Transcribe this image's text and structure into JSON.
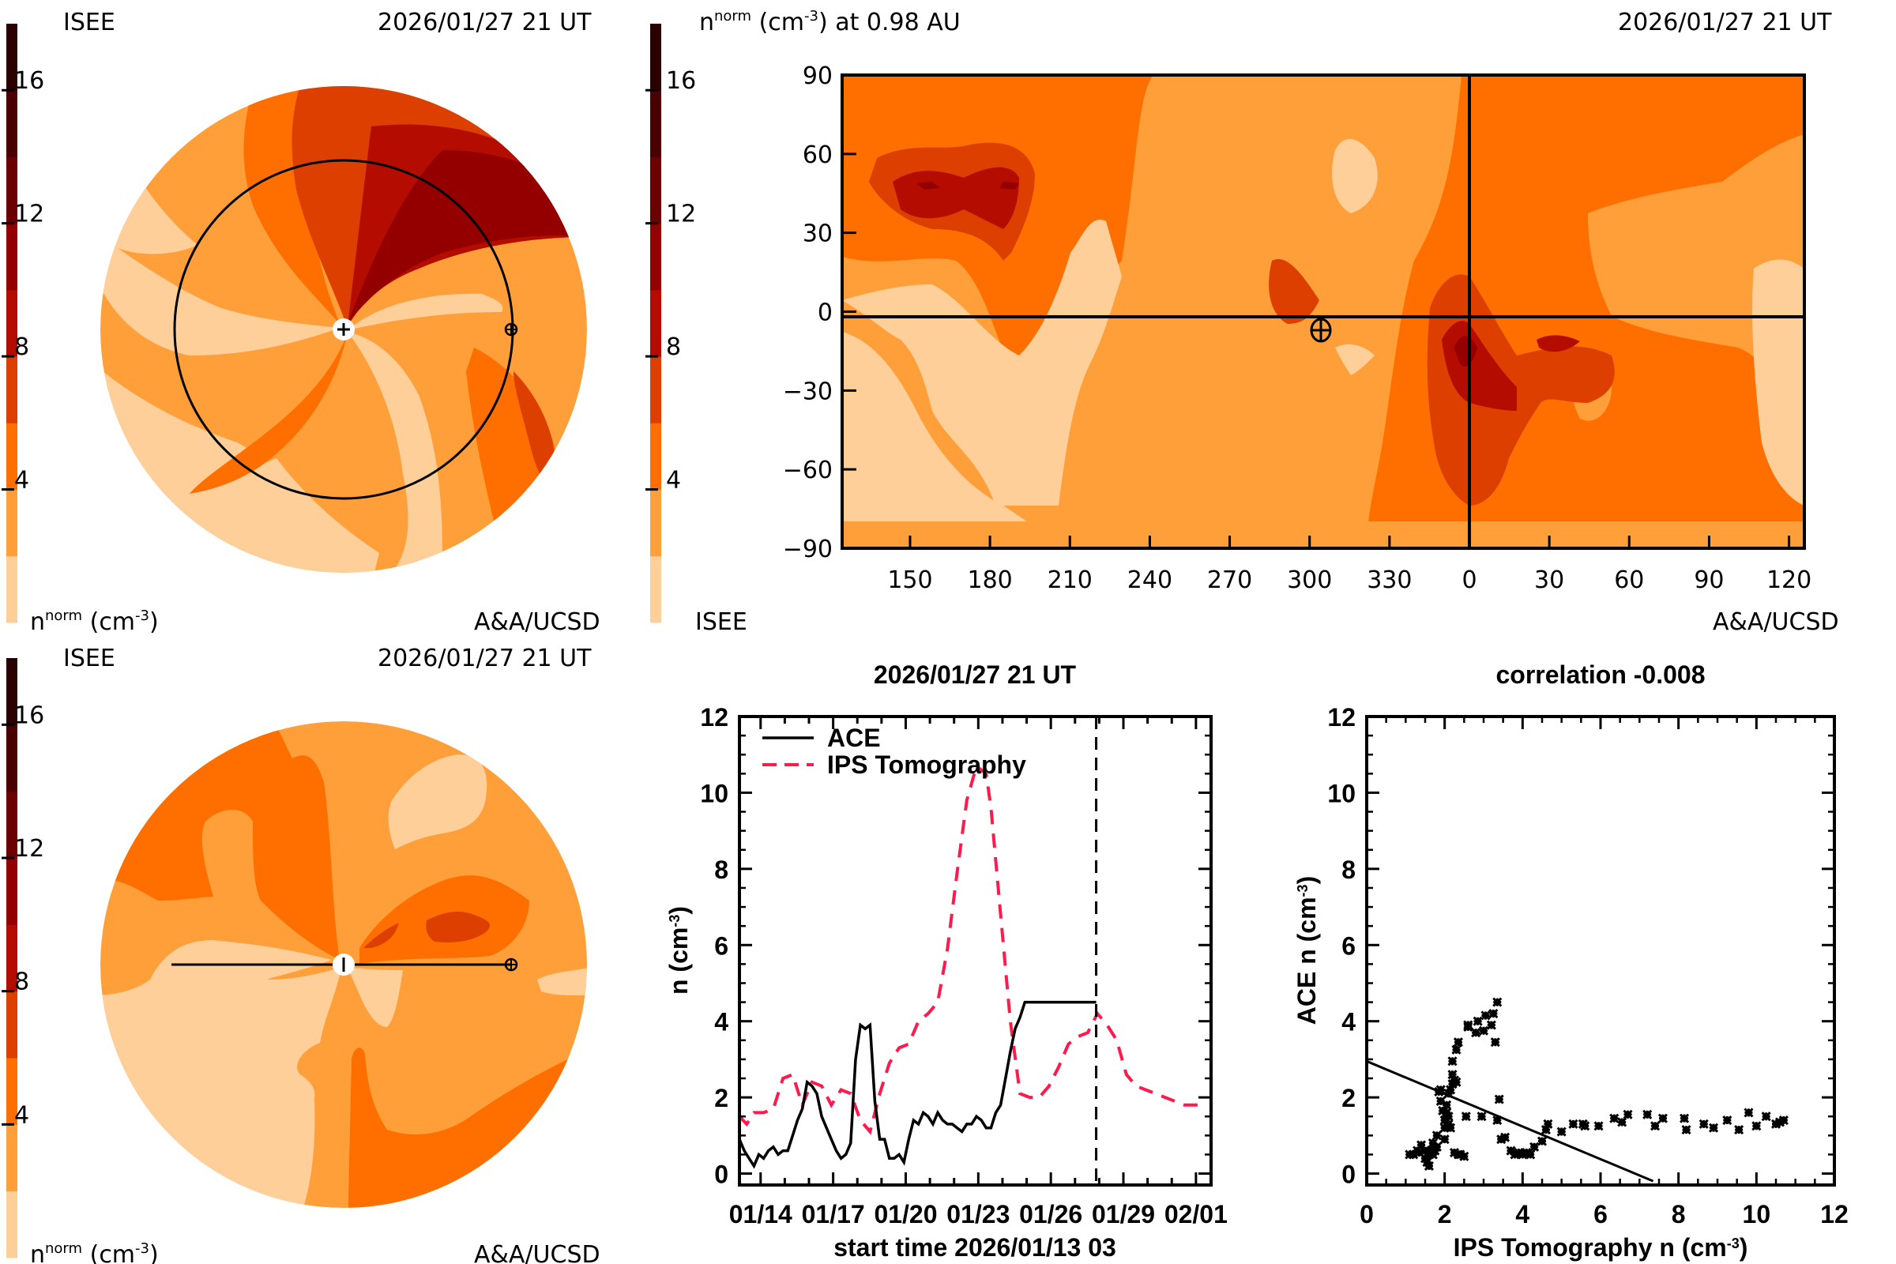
{
  "colors": {
    "levels": [
      "#ffcf9a",
      "#ff9f3a",
      "#ff6f00",
      "#dc3f00",
      "#b50c00",
      "#940000",
      "#6c0000",
      "#4a0000",
      "#2a0000"
    ],
    "ips_line": "#ff1a4d",
    "ace_line": "#000000"
  },
  "panels": {
    "ecliptic": {
      "source_label": "ISEE",
      "timestamp": "2026/01/27 21 UT",
      "unit_label_base": "n",
      "unit_label_sup": "norm",
      "unit_label_rest": "(cm",
      "unit_label_exp": "-3",
      "unit_label_close": ")",
      "credit": "A&A/UCSD",
      "colorbar_ticks": [
        "4",
        "8",
        "12",
        "16"
      ]
    },
    "map": {
      "title_base": "n",
      "title_sup": "norm",
      "title_rest": " (cm",
      "title_exp": "-3",
      "title_close": ") at 0.98 AU",
      "timestamp": "2026/01/27 21 UT",
      "source_label": "ISEE",
      "credit": "A&A/UCSD",
      "colorbar_ticks": [
        "4",
        "8",
        "12",
        "16"
      ],
      "y_ticks": [
        "90",
        "60",
        "30",
        "0",
        "−30",
        "−60",
        "−90"
      ],
      "x_ticks": [
        "150",
        "180",
        "210",
        "240",
        "270",
        "300",
        "330",
        "0",
        "30",
        "60",
        "90",
        "120"
      ]
    },
    "meridional": {
      "source_label": "ISEE",
      "timestamp": "2026/01/27 21 UT",
      "credit": "A&A/UCSD",
      "colorbar_ticks": [
        "4",
        "8",
        "12",
        "16"
      ]
    }
  },
  "chart_data": [
    {
      "type": "line",
      "title": "2026/01/27 21 UT",
      "xlabel": "start time 2026/01/13 03",
      "ylabel": "n (cm^-3)",
      "ylabel_base": "n (cm",
      "ylabel_exp": "-3",
      "ylabel_close": ")",
      "x_unit": "days since 2026/01/13 03 UT",
      "xlim": [
        0,
        19.5
      ],
      "ylim": [
        -0.3,
        12
      ],
      "x_tick_labels": [
        "01/14",
        "01/17",
        "01/20",
        "01/23",
        "01/26",
        "01/29",
        "02/01"
      ],
      "x_tick_values": [
        0.875,
        3.875,
        6.875,
        9.875,
        12.875,
        15.875,
        18.875
      ],
      "y_tick_labels": [
        "0",
        "2",
        "4",
        "6",
        "8",
        "10",
        "12"
      ],
      "y_tick_values": [
        0,
        2,
        4,
        6,
        8,
        10,
        12
      ],
      "current_time_marker": 14.75,
      "legend": [
        "ACE",
        "IPS Tomography"
      ],
      "legend_position": "top-left",
      "series": [
        {
          "name": "ACE",
          "style": "solid",
          "x": [
            0.0,
            0.2,
            0.4,
            0.6,
            0.8,
            1.0,
            1.2,
            1.4,
            1.6,
            1.8,
            2.0,
            2.2,
            2.4,
            2.6,
            2.8,
            3.0,
            3.2,
            3.4,
            3.6,
            3.8,
            4.0,
            4.2,
            4.4,
            4.6,
            4.8,
            5.0,
            5.2,
            5.4,
            5.6,
            5.8,
            6.0,
            6.2,
            6.4,
            6.6,
            6.8,
            7.0,
            7.2,
            7.4,
            7.6,
            7.8,
            8.0,
            8.2,
            8.4,
            8.6,
            8.8,
            9.0,
            9.2,
            9.4,
            9.6,
            9.8,
            10.0,
            10.2,
            10.4,
            10.6,
            10.8,
            11.0,
            11.2,
            11.4,
            11.6,
            11.8,
            12.0,
            12.2,
            12.4,
            12.6,
            12.8,
            13.0,
            13.2,
            13.4,
            13.6,
            13.8,
            14.0,
            14.2,
            14.4,
            14.6,
            14.75
          ],
          "values": [
            0.9,
            0.6,
            0.4,
            0.2,
            0.5,
            0.4,
            0.6,
            0.7,
            0.5,
            0.6,
            0.6,
            1.0,
            1.4,
            1.7,
            2.4,
            2.3,
            2.1,
            1.5,
            1.2,
            0.9,
            0.6,
            0.4,
            0.5,
            0.8,
            3.0,
            3.9,
            3.8,
            3.9,
            1.9,
            0.9,
            0.9,
            0.4,
            0.4,
            0.5,
            0.3,
            0.9,
            1.4,
            1.3,
            1.6,
            1.5,
            1.3,
            1.6,
            1.4,
            1.3,
            1.3,
            1.2,
            1.1,
            1.3,
            1.3,
            1.5,
            1.4,
            1.2,
            1.2,
            1.6,
            1.8,
            2.5,
            3.2,
            3.8,
            4.1,
            4.5,
            4.5,
            4.5,
            4.5,
            4.5,
            4.5,
            4.5,
            4.5,
            4.5,
            4.5,
            4.5,
            4.5,
            4.5,
            4.5,
            4.5,
            4.5
          ]
        },
        {
          "name": "IPS Tomography",
          "style": "dashed",
          "x": [
            0.0,
            0.3,
            0.6,
            1.0,
            1.4,
            1.8,
            2.2,
            2.6,
            3.0,
            3.4,
            3.8,
            4.2,
            4.6,
            5.0,
            5.4,
            5.8,
            6.2,
            6.6,
            7.0,
            7.4,
            7.8,
            8.2,
            8.6,
            9.0,
            9.4,
            9.8,
            10.2,
            10.4,
            10.8,
            11.2,
            11.6,
            12.0,
            12.4,
            12.8,
            13.2,
            13.6,
            14.0,
            14.4,
            14.8,
            15.2,
            15.6,
            16.0,
            16.4,
            16.8,
            17.2,
            17.6,
            18.0,
            18.4,
            18.8,
            19.2
          ],
          "values": [
            1.5,
            1.3,
            1.6,
            1.6,
            1.7,
            2.5,
            2.6,
            1.8,
            2.4,
            2.3,
            1.8,
            2.2,
            2.1,
            1.4,
            1.1,
            2.1,
            2.9,
            3.3,
            3.4,
            4.0,
            4.2,
            4.5,
            5.9,
            7.9,
            9.8,
            10.7,
            10.5,
            9.6,
            6.8,
            4.0,
            2.1,
            2.0,
            2.0,
            2.3,
            2.8,
            3.4,
            3.6,
            3.7,
            4.2,
            3.9,
            3.5,
            2.6,
            2.3,
            2.2,
            2.1,
            2.0,
            1.9,
            1.8,
            1.8,
            1.8
          ]
        }
      ]
    },
    {
      "type": "scatter",
      "title": "correlation -0.008",
      "xlabel": "IPS Tomography n (cm^-3)",
      "xlabel_base": "IPS Tomography n (cm",
      "xlabel_exp": "-3",
      "xlabel_close": ")",
      "ylabel": "ACE n (cm^-3)",
      "ylabel_base": "ACE n (cm",
      "ylabel_exp": "-3",
      "ylabel_close": ")",
      "xlim": [
        0,
        12
      ],
      "ylim": [
        -0.3,
        12
      ],
      "x_tick_labels": [
        "0",
        "2",
        "4",
        "6",
        "8",
        "10",
        "12"
      ],
      "x_tick_values": [
        0,
        2,
        4,
        6,
        8,
        10,
        12
      ],
      "y_tick_labels": [
        "0",
        "2",
        "4",
        "6",
        "8",
        "10",
        "12"
      ],
      "y_tick_values": [
        0,
        2,
        4,
        6,
        8,
        10,
        12
      ],
      "fit_line": {
        "x": [
          0,
          7.35
        ],
        "y": [
          2.95,
          -0.2
        ]
      },
      "points": {
        "x": [
          1.1,
          1.2,
          1.3,
          1.35,
          1.4,
          1.5,
          1.5,
          1.55,
          1.6,
          1.6,
          1.65,
          1.7,
          1.7,
          1.75,
          1.8,
          1.8,
          1.85,
          1.9,
          1.9,
          1.95,
          2.0,
          2.0,
          2.0,
          2.05,
          2.05,
          2.1,
          2.1,
          2.1,
          2.15,
          2.15,
          2.2,
          2.2,
          2.2,
          2.25,
          2.3,
          2.3,
          2.35,
          2.4,
          2.5,
          2.6,
          2.6,
          2.8,
          2.85,
          3.0,
          3.05,
          3.2,
          3.25,
          3.35,
          3.3,
          3.35,
          2.25,
          2.35,
          2.55,
          2.95,
          3.4,
          3.45,
          3.55,
          3.7,
          3.8,
          3.9,
          4.0,
          4.1,
          4.2,
          4.3,
          4.5,
          4.65,
          4.6,
          5.0,
          5.3,
          5.55,
          5.6,
          5.95,
          6.35,
          6.55,
          6.7,
          7.2,
          7.4,
          7.6,
          8.15,
          8.2,
          8.65,
          8.9,
          9.25,
          9.55,
          9.8,
          10.0,
          10.25,
          10.5,
          10.6,
          10.7
        ],
        "y": [
          0.5,
          0.5,
          0.6,
          0.55,
          0.75,
          0.4,
          0.6,
          0.3,
          0.5,
          0.2,
          0.6,
          0.5,
          0.8,
          0.6,
          0.7,
          1.0,
          2.15,
          2.2,
          1.9,
          1.65,
          0.9,
          1.4,
          1.2,
          1.6,
          1.8,
          1.3,
          1.5,
          2.1,
          2.2,
          1.2,
          2.35,
          2.6,
          2.95,
          2.45,
          2.4,
          3.25,
          3.45,
          0.5,
          0.45,
          3.85,
          3.9,
          3.7,
          4.0,
          3.75,
          4.15,
          3.9,
          4.2,
          4.5,
          3.45,
          1.4,
          0.55,
          0.5,
          1.5,
          1.5,
          1.95,
          0.9,
          0.95,
          0.6,
          0.5,
          0.55,
          0.5,
          0.55,
          0.5,
          0.7,
          0.85,
          1.3,
          1.15,
          1.1,
          1.3,
          1.3,
          1.25,
          1.25,
          1.45,
          1.35,
          1.55,
          1.55,
          1.25,
          1.45,
          1.45,
          1.15,
          1.3,
          1.2,
          1.4,
          1.15,
          1.6,
          1.25,
          1.5,
          1.3,
          1.35,
          1.4
        ]
      }
    }
  ]
}
